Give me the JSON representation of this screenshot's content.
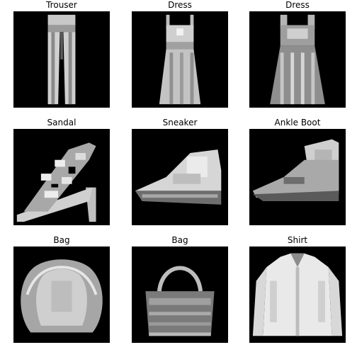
{
  "grid": {
    "items": [
      {
        "label": "Trouser"
      },
      {
        "label": "Dress"
      },
      {
        "label": "Dress"
      },
      {
        "label": "Sandal"
      },
      {
        "label": "Sneaker"
      },
      {
        "label": "Ankle Boot"
      },
      {
        "label": "Bag"
      },
      {
        "label": "Bag"
      },
      {
        "label": "Shirt"
      }
    ]
  }
}
